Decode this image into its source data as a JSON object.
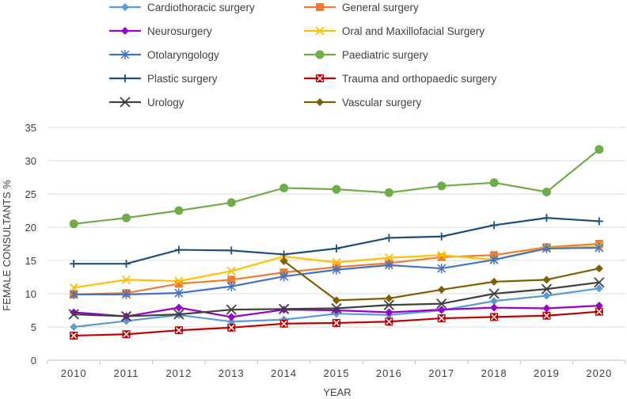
{
  "chart_data": {
    "type": "line",
    "title": "",
    "xlabel": "YEAR",
    "ylabel": "FEMALE CONSULTANTS  %",
    "ylim": [
      0,
      35
    ],
    "yticks": [
      0,
      5,
      10,
      15,
      20,
      25,
      30,
      35
    ],
    "grid": "horizontal",
    "legend_position": "top",
    "x": [
      "2010",
      "2011",
      "2012",
      "2013",
      "2014",
      "2015",
      "2016",
      "2017",
      "2018",
      "2019",
      "2020"
    ],
    "series": [
      {
        "name": "Cardiothoracic surgery",
        "color": "#5B9BD5",
        "marker": "diamond",
        "values": [
          5.0,
          5.9,
          6.8,
          5.8,
          6.1,
          7.0,
          6.8,
          7.5,
          8.9,
          9.7,
          10.8
        ]
      },
      {
        "name": "General surgery",
        "color": "#ED7D31",
        "marker": "square",
        "values": [
          9.9,
          10.1,
          11.5,
          12.1,
          13.2,
          14.0,
          14.6,
          15.5,
          15.8,
          17.0,
          17.5
        ]
      },
      {
        "name": "Neurosurgery",
        "color": "#9900CC",
        "marker": "diamond",
        "values": [
          7.2,
          6.6,
          7.9,
          6.5,
          7.6,
          7.5,
          7.2,
          7.6,
          7.9,
          7.8,
          8.2
        ]
      },
      {
        "name": "Oral and Maxillofacial Surgery",
        "color": "#FFC000",
        "marker": "x",
        "values": [
          10.9,
          12.1,
          11.9,
          13.4,
          15.6,
          14.7,
          15.4,
          15.8,
          15.1,
          16.9,
          17.1
        ]
      },
      {
        "name": "Otolaryngology",
        "color": "#4472C4",
        "marker": "asterisk",
        "values": [
          9.9,
          9.9,
          10.1,
          11.1,
          12.6,
          13.6,
          14.3,
          13.8,
          15.1,
          16.8,
          16.9
        ]
      },
      {
        "name": "Paediatric surgery",
        "color": "#70AD47",
        "marker": "circle",
        "values": [
          20.5,
          21.4,
          22.5,
          23.7,
          25.9,
          25.7,
          25.2,
          26.2,
          26.7,
          25.3,
          31.7
        ]
      },
      {
        "name": "Plastic surgery",
        "color": "#1F4E79",
        "marker": "plus",
        "values": [
          14.5,
          14.5,
          16.6,
          16.5,
          15.9,
          16.8,
          18.4,
          18.6,
          20.3,
          21.4,
          20.9
        ]
      },
      {
        "name": "Trauma and orthopaedic surgery",
        "color": "#C00000",
        "marker": "xbox",
        "values": [
          3.7,
          3.9,
          4.5,
          4.9,
          5.5,
          5.6,
          5.8,
          6.3,
          6.5,
          6.7,
          7.3
        ]
      },
      {
        "name": "Urology",
        "color": "#404040",
        "marker": "bigx",
        "values": [
          6.9,
          6.6,
          6.9,
          7.6,
          7.7,
          7.8,
          8.3,
          8.5,
          10.0,
          10.7,
          11.7
        ]
      },
      {
        "name": "Vascular surgery",
        "color": "#7F6000",
        "marker": "diamond",
        "values": [
          null,
          null,
          null,
          null,
          14.9,
          9.0,
          9.3,
          10.6,
          11.8,
          12.1,
          13.8
        ]
      }
    ]
  }
}
